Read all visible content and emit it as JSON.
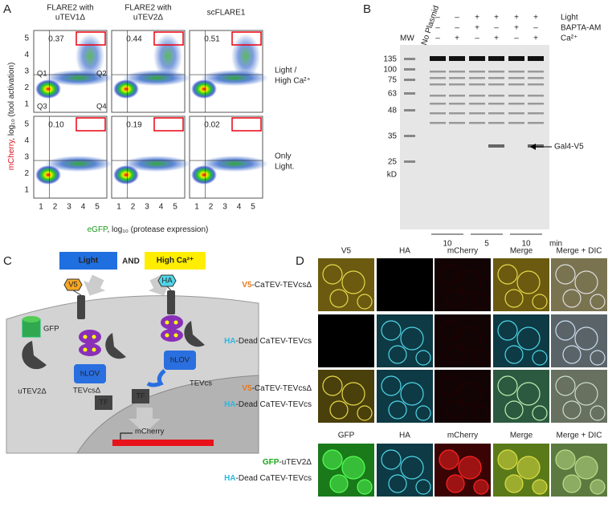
{
  "panel_a": {
    "letter": "A",
    "titles": [
      [
        "FLARE2 with",
        "uTEV1Δ"
      ],
      [
        "FLARE2 with",
        "uTEV2Δ"
      ],
      [
        "scFLARE1"
      ]
    ],
    "percentages": [
      [
        "0.37",
        "0.44",
        "0.51"
      ],
      [
        "0.10",
        "0.19",
        "0.02"
      ]
    ],
    "row_labels": [
      [
        "Light /",
        "High Ca²⁺"
      ],
      [
        "Only",
        "Light."
      ]
    ],
    "quadrants": [
      "Q1",
      "Q2",
      "Q3",
      "Q4"
    ],
    "y_axis": {
      "label_color": "mCherry",
      "label_rest": ", log₁₀ (tool activation)",
      "ticks": [
        "1",
        "2",
        "3",
        "4",
        "5"
      ]
    },
    "x_axis": {
      "label_color": "eGFP",
      "label_rest": ", log₁₀ (protease expression)",
      "ticks": [
        "1",
        "2",
        "3",
        "4",
        "5"
      ]
    }
  },
  "panel_b": {
    "letter": "B",
    "mw_header": "MW",
    "no_plasmid": "No Plasmid",
    "conditions": [
      {
        "name": "Light",
        "signs": [
          "–",
          "–",
          "+",
          "+",
          "+",
          "+"
        ]
      },
      {
        "name": "BAPTA-AM",
        "signs": [
          "–",
          "–",
          "+",
          "–",
          "+",
          "–"
        ]
      },
      {
        "name": "Ca²⁺",
        "signs": [
          "–",
          "+",
          "–",
          "+",
          "–",
          "+"
        ]
      }
    ],
    "markers": [
      "135",
      "100",
      "75",
      "63",
      "48",
      "35",
      "25"
    ],
    "unit": "kD",
    "band_label": "Gal4-V5",
    "times": [
      "10",
      "5",
      "10"
    ],
    "time_unit": "min"
  },
  "panel_c": {
    "letter": "C",
    "light": "Light",
    "and": "AND",
    "high_ca": "High Ca²⁺",
    "v5": "V5",
    "ha": "HA",
    "gfp": "GFP",
    "utev": "uTEV2Δ",
    "hlov_left": "hLOV",
    "tevcs_delta": "TEVcsΔ",
    "tf_left": "TF",
    "hlov_right": "hLOV",
    "tevcs": "TEVcs",
    "tf_right": "TF",
    "mcherry": "mCherry"
  },
  "panel_d": {
    "letter": "D",
    "headers_top": [
      "V5",
      "HA",
      "mCherry",
      "Merge",
      "Merge + DIC"
    ],
    "headers_bottom": [
      "GFP",
      "HA",
      "mCherry",
      "Merge",
      "Merge + DIC"
    ],
    "rows": [
      [
        {
          "tag": "V5",
          "rest": "-CaTEV-TEVcsΔ"
        }
      ],
      [
        {
          "tag": "HA",
          "rest": "-Dead CaTEV-TEVcs"
        }
      ],
      [
        {
          "tag": "V5",
          "rest": "-CaTEV-TEVcsΔ"
        },
        {
          "tag": "HA",
          "rest": "-Dead CaTEV-TEVcs"
        }
      ],
      [
        {
          "tag": "GFP",
          "rest": "-uTEV2Δ"
        },
        {
          "tag": "HA",
          "rest": "-Dead CaTEV-TEVcs"
        }
      ]
    ]
  }
}
